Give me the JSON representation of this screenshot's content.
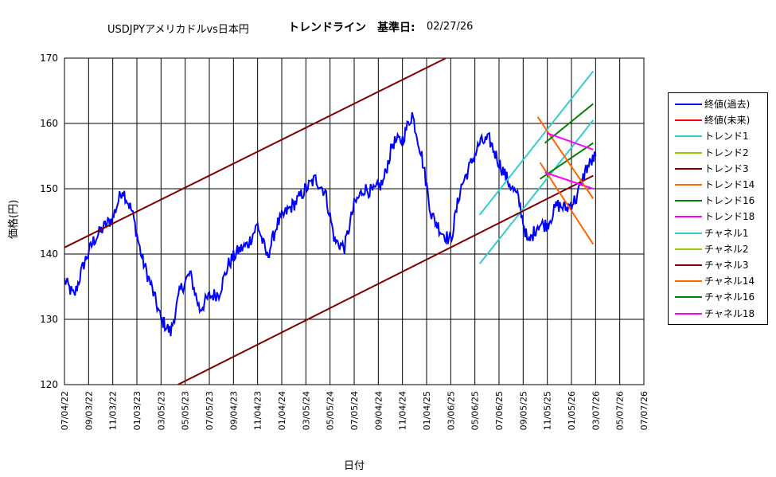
{
  "title": {
    "main": "USDJPYアメリカドルvs日本円",
    "bold": "トレンドライン　基準日:",
    "date": "02/27/26"
  },
  "chart_data": {
    "type": "line",
    "title": "USDJPYアメリカドルvs日本円　トレンドライン　基準日: 02/27/26",
    "xlabel": "日付",
    "ylabel": "価格(円)",
    "ylim": [
      120,
      170
    ],
    "yticks": [
      "170",
      "160",
      "150",
      "140",
      "130",
      "120"
    ],
    "xticks": [
      "07/04/22",
      "09/03/22",
      "11/03/22",
      "01/03/23",
      "03/05/23",
      "05/05/23",
      "07/05/23",
      "09/04/23",
      "11/04/23",
      "01/04/24",
      "03/05/24",
      "05/05/24",
      "07/05/24",
      "09/04/24",
      "11/04/24",
      "01/04/25",
      "03/06/25",
      "05/06/25",
      "07/06/25",
      "09/05/25",
      "11/05/25",
      "01/05/26",
      "03/07/26",
      "05/07/26",
      "07/07/26"
    ],
    "grid": true,
    "legend_position": "right",
    "series": [
      {
        "name": "終値(過去)",
        "color": "#0000ff",
        "x": [
          0,
          0.4,
          0.8,
          1.2,
          1.6,
          2.0,
          2.4,
          2.8,
          3.2,
          3.6,
          4.0,
          4.4,
          4.8,
          5.2,
          5.6,
          6.0,
          6.4,
          6.8,
          7.2,
          7.6,
          8.0,
          8.4,
          8.8,
          9.2,
          9.6,
          10.0,
          10.4,
          10.8,
          11.2,
          11.6,
          12.0,
          12.4,
          12.8,
          13.2,
          13.6,
          14.0,
          14.4,
          14.8,
          15.2,
          15.6,
          16.0,
          16.4,
          16.8,
          17.2,
          17.6,
          18.0,
          18.4,
          18.8,
          19.2,
          19.6,
          20.0,
          20.4,
          20.8,
          21.2,
          21.6,
          22.0
        ],
        "y": [
          136.0,
          133.5,
          138.5,
          142.0,
          144.0,
          145.5,
          150.0,
          146.5,
          139.5,
          135.0,
          130.0,
          128.0,
          134.5,
          137.0,
          131.5,
          133.5,
          134.0,
          138.5,
          140.5,
          141.5,
          144.5,
          139.5,
          144.5,
          146.5,
          148.0,
          150.0,
          151.5,
          149.5,
          142.0,
          141.0,
          147.5,
          150.0,
          149.5,
          151.0,
          157.0,
          157.5,
          161.5,
          155.0,
          146.0,
          143.5,
          142.0,
          150.0,
          153.5,
          157.0,
          157.5,
          154.0,
          151.0,
          148.5,
          141.5,
          144.5,
          144.5,
          147.5,
          147.0,
          148.5,
          153.0,
          155.0
        ]
      },
      {
        "name": "終値(未来)",
        "color": "#ff0000",
        "x": [],
        "y": []
      },
      {
        "name": "トレンド1",
        "color": "#33cccc",
        "x": [
          17.2,
          21.9
        ],
        "y": [
          138.5,
          160.5
        ]
      },
      {
        "name": "トレンド2",
        "color": "#99cc00",
        "x": [],
        "y": []
      },
      {
        "name": "トレンド3",
        "color": "#800000",
        "x": [
          4.7,
          21.9
        ],
        "y": [
          120.0,
          152.0
        ]
      },
      {
        "name": "トレンド14",
        "color": "#ff6600",
        "x": [
          19.7,
          21.9
        ],
        "y": [
          154.0,
          141.5
        ]
      },
      {
        "name": "トレンド16",
        "color": "#008000",
        "x": [
          19.7,
          21.9
        ],
        "y": [
          151.5,
          157.0
        ]
      },
      {
        "name": "トレンド18",
        "color": "#ff00ff",
        "x": [
          19.9,
          21.9
        ],
        "y": [
          152.5,
          150.0
        ]
      },
      {
        "name": "チャネル1",
        "color": "#33cccc",
        "x": [
          17.2,
          21.9
        ],
        "y": [
          146.0,
          168.0
        ]
      },
      {
        "name": "チャネル2",
        "color": "#99cc00",
        "x": [],
        "y": []
      },
      {
        "name": "チャネル3",
        "color": "#800000",
        "x": [
          0,
          15.8
        ],
        "y": [
          141.0,
          170.0
        ]
      },
      {
        "name": "チャネル14",
        "color": "#ff6600",
        "x": [
          19.6,
          21.9
        ],
        "y": [
          161.0,
          148.5
        ]
      },
      {
        "name": "チャネル16",
        "color": "#008000",
        "x": [
          19.9,
          21.9
        ],
        "y": [
          157.0,
          163.0
        ]
      },
      {
        "name": "チャネル18",
        "color": "#ff00ff",
        "x": [
          20.0,
          21.9
        ],
        "y": [
          158.5,
          156.0
        ]
      }
    ]
  }
}
